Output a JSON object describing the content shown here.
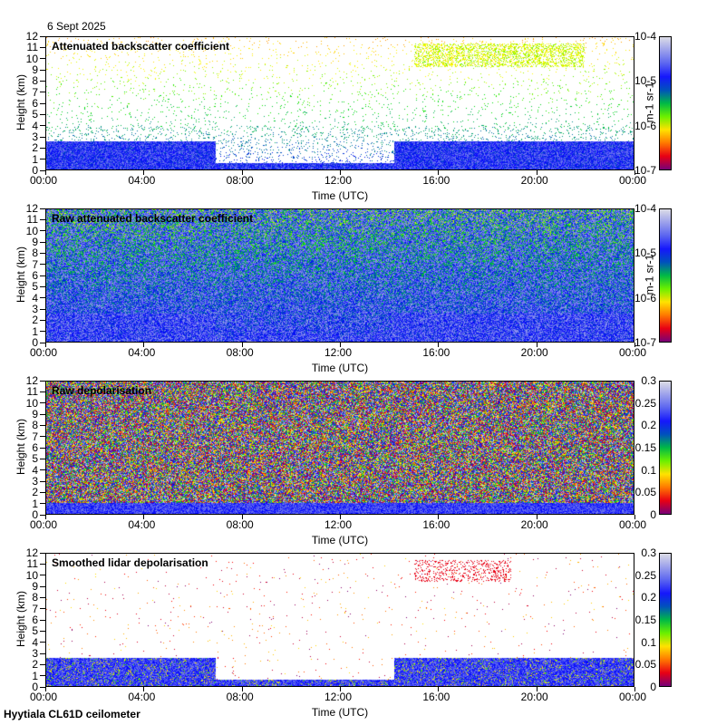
{
  "date": "6 Sept 2025",
  "footer": "Hyytiala CL61D ceilometer",
  "chart_data": [
    {
      "type": "heatmap",
      "title": "Attenuated backscatter coefficient",
      "xlabel": "Time (UTC)",
      "ylabel": "Height (km)",
      "xticks": [
        "00:00",
        "04:00",
        "08:00",
        "12:00",
        "16:00",
        "20:00",
        "00:00"
      ],
      "ylim": [
        0,
        12
      ],
      "yticks": [
        "0",
        "1",
        "2",
        "3",
        "4",
        "5",
        "6",
        "7",
        "8",
        "9",
        "10",
        "11",
        "12"
      ],
      "colorbar": {
        "label": "m-1 sr-1",
        "scale": "log",
        "ticks": [
          "10-7",
          "10-6",
          "10-5",
          "10-4"
        ],
        "range": [
          1e-07,
          0.0001
        ]
      },
      "noise": "low"
    },
    {
      "type": "heatmap",
      "title": "Raw attenuated backscatter coefficient",
      "xlabel": "Time (UTC)",
      "ylabel": "Height (km)",
      "xticks": [
        "00:00",
        "04:00",
        "08:00",
        "12:00",
        "16:00",
        "20:00",
        "00:00"
      ],
      "ylim": [
        0,
        12
      ],
      "yticks": [
        "0",
        "1",
        "2",
        "3",
        "4",
        "5",
        "6",
        "7",
        "8",
        "9",
        "10",
        "11",
        "12"
      ],
      "colorbar": {
        "label": "m-1 sr-1",
        "scale": "log",
        "ticks": [
          "10-7",
          "10-6",
          "10-5",
          "10-4"
        ],
        "range": [
          1e-07,
          0.0001
        ]
      },
      "noise": "high"
    },
    {
      "type": "heatmap",
      "title": "Raw depolarisation",
      "xlabel": "Time (UTC)",
      "ylabel": "Height (km)",
      "xticks": [
        "00:00",
        "04:00",
        "08:00",
        "12:00",
        "16:00",
        "20:00",
        "00:00"
      ],
      "ylim": [
        0,
        12
      ],
      "yticks": [
        "0",
        "1",
        "2",
        "3",
        "4",
        "5",
        "6",
        "7",
        "8",
        "9",
        "10",
        "11",
        "12"
      ],
      "colorbar": {
        "label": "",
        "scale": "linear",
        "ticks": [
          "0",
          "0.05",
          "0.1",
          "0.15",
          "0.2",
          "0.25",
          "0.3"
        ],
        "range": [
          0,
          0.3
        ]
      },
      "noise": "depol"
    },
    {
      "type": "heatmap",
      "title": "Smoothed lidar depolarisation",
      "xlabel": "Time (UTC)",
      "ylabel": "Height (km)",
      "xticks": [
        "00:00",
        "04:00",
        "08:00",
        "12:00",
        "16:00",
        "20:00",
        "00:00"
      ],
      "ylim": [
        0,
        12
      ],
      "yticks": [
        "0",
        "1",
        "2",
        "3",
        "4",
        "5",
        "6",
        "7",
        "8",
        "9",
        "10",
        "11",
        "12"
      ],
      "colorbar": {
        "label": "",
        "scale": "linear",
        "ticks": [
          "0",
          "0.05",
          "0.1",
          "0.15",
          "0.2",
          "0.25",
          "0.3"
        ],
        "range": [
          0,
          0.3
        ]
      },
      "noise": "smooth"
    }
  ]
}
